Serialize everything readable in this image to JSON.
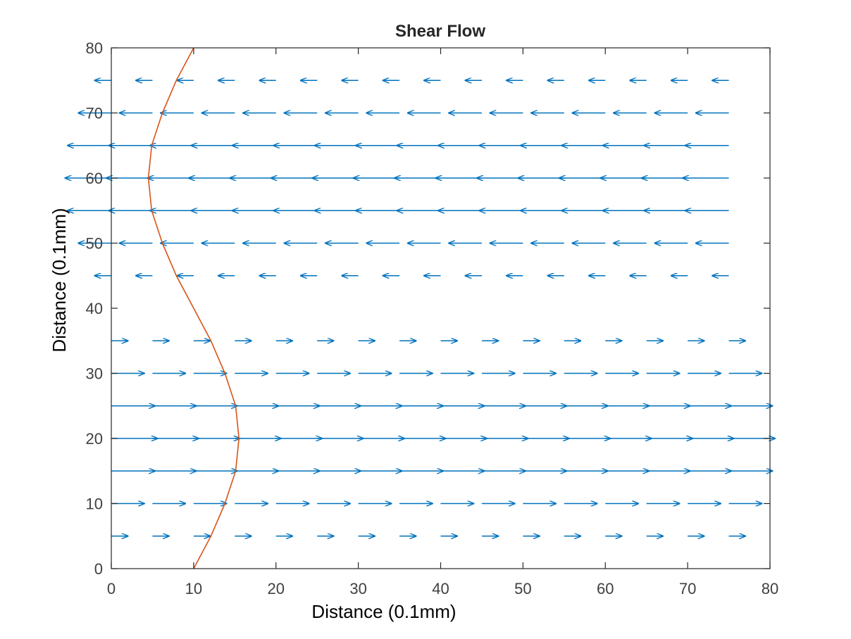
{
  "chart_data": {
    "type": "quiver",
    "title": "Shear Flow",
    "xlabel": "Distance (0.1mm)",
    "ylabel": "Distance (0.1mm)",
    "xlim": [
      0,
      80
    ],
    "ylim": [
      0,
      80
    ],
    "xticks": [
      0,
      10,
      20,
      30,
      40,
      50,
      60,
      70,
      80
    ],
    "yticks": [
      0,
      10,
      20,
      30,
      40,
      50,
      60,
      70,
      80
    ],
    "grid": false,
    "colors": {
      "arrows": "#0072BD",
      "profile": "#D95319"
    },
    "vector_field": {
      "x_positions": [
        0,
        5,
        10,
        15,
        20,
        25,
        30,
        35,
        40,
        45,
        50,
        55,
        60,
        65,
        70,
        75
      ],
      "rows": [
        {
          "y": 5,
          "u": 2.0
        },
        {
          "y": 10,
          "u": 4.0
        },
        {
          "y": 15,
          "u": 5.3
        },
        {
          "y": 20,
          "u": 5.6
        },
        {
          "y": 25,
          "u": 5.3
        },
        {
          "y": 30,
          "u": 4.0
        },
        {
          "y": 35,
          "u": 2.0
        },
        {
          "y": 45,
          "u": -2.0
        },
        {
          "y": 50,
          "u": -4.0
        },
        {
          "y": 55,
          "u": -5.3
        },
        {
          "y": 60,
          "u": -5.6
        },
        {
          "y": 65,
          "u": -5.3
        },
        {
          "y": 70,
          "u": -4.0
        },
        {
          "y": 75,
          "u": -2.0
        }
      ]
    },
    "profile_curve": {
      "y": [
        0,
        5,
        10,
        15,
        20,
        25,
        30,
        35,
        40,
        45,
        50,
        55,
        60,
        65,
        70,
        75,
        80
      ],
      "x": [
        10,
        12.1,
        13.8,
        15.1,
        15.5,
        15.1,
        13.8,
        12.1,
        10,
        7.9,
        6.2,
        4.9,
        4.5,
        4.9,
        6.2,
        7.9,
        10
      ]
    }
  }
}
